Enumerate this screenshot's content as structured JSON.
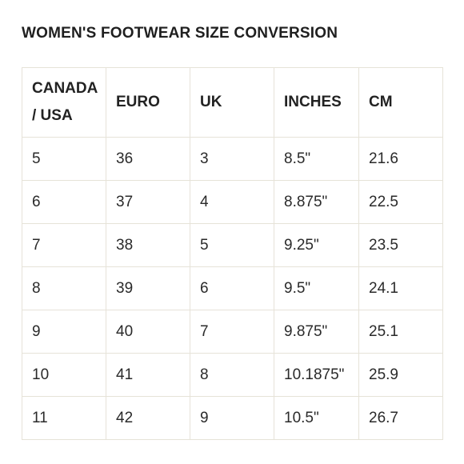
{
  "title": "WOMEN'S FOOTWEAR SIZE CONVERSION",
  "table": {
    "headers": [
      "CANADA / USA",
      "EURO",
      "UK",
      "INCHES",
      "CM"
    ],
    "rows": [
      [
        "5",
        "36",
        "3",
        "8.5\"",
        "21.6"
      ],
      [
        "6",
        "37",
        "4",
        "8.875\"",
        "22.5"
      ],
      [
        "7",
        "38",
        "5",
        "9.25\"",
        "23.5"
      ],
      [
        "8",
        "39",
        "6",
        "9.5\"",
        "24.1"
      ],
      [
        "9",
        "40",
        "7",
        "9.875\"",
        "25.1"
      ],
      [
        "10",
        "41",
        "8",
        "10.1875\"",
        "25.9"
      ],
      [
        "11",
        "42",
        "9",
        "10.5\"",
        "26.7"
      ]
    ]
  },
  "colors": {
    "text": "#222222",
    "border": "#e6e3d8",
    "background": "#ffffff"
  }
}
